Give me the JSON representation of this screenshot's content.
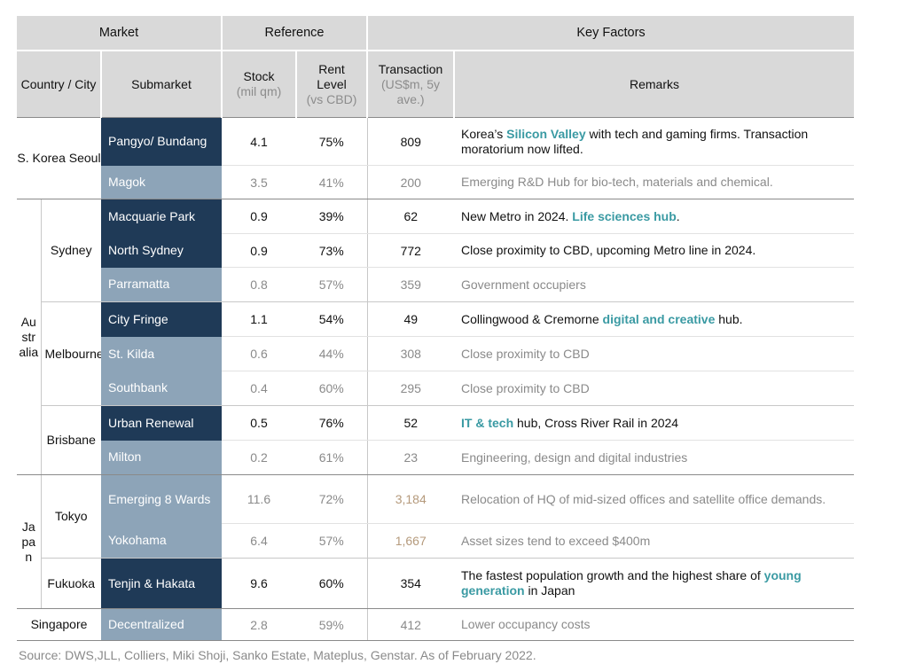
{
  "header": {
    "group_market": "Market",
    "group_reference": "Reference",
    "group_key_factors": "Key Factors",
    "col_country_city": "Country / City",
    "col_submarket": "Submarket",
    "col_stock": "Stock",
    "col_stock_unit": "(mil qm)",
    "col_rent": "Rent Level",
    "col_rent_unit": "(vs CBD)",
    "col_transaction": "Transaction",
    "col_transaction_unit": "(US$m, 5y ave.)",
    "col_remarks": "Remarks"
  },
  "countries": {
    "korea": "S. Korea Seoul",
    "australia": "Australia",
    "japan": "Japan",
    "singapore": "Singapore"
  },
  "cities": {
    "sydney": "Sydney",
    "melbourne": "Melbourne",
    "brisbane": "Brisbane",
    "tokyo": "Tokyo",
    "fukuoka": "Fukuoka"
  },
  "rows": [
    {
      "submarket": "Pangyo/ Bundang",
      "stock": "4.1",
      "rent": "75%",
      "transaction": "809",
      "remark_pre": "Korea’s ",
      "remark_hl": "Silicon Valley",
      "remark_post": " with tech and gaming firms. Transaction moratorium now lifted."
    },
    {
      "submarket": "Magok",
      "stock": "3.5",
      "rent": "41%",
      "transaction": "200",
      "remark_pre": "Emerging R&D Hub for bio-tech, materials and chemical.",
      "remark_hl": "",
      "remark_post": ""
    },
    {
      "submarket": "Macquarie Park",
      "stock": "0.9",
      "rent": "39%",
      "transaction": "62",
      "remark_pre": "New Metro in 2024. ",
      "remark_hl": "Life sciences hub",
      "remark_post": "."
    },
    {
      "submarket": "North Sydney",
      "stock": "0.9",
      "rent": "73%",
      "transaction": "772",
      "remark_pre": "Close proximity to CBD, upcoming Metro line in 2024.",
      "remark_hl": "",
      "remark_post": ""
    },
    {
      "submarket": "Parramatta",
      "stock": "0.8",
      "rent": "57%",
      "transaction": "359",
      "remark_pre": "Government occupiers",
      "remark_hl": "",
      "remark_post": ""
    },
    {
      "submarket": "City Fringe",
      "stock": "1.1",
      "rent": "54%",
      "transaction": "49",
      "remark_pre": "Collingwood & Cremorne ",
      "remark_hl": "digital and creative",
      "remark_post": " hub."
    },
    {
      "submarket": "St. Kilda",
      "stock": "0.6",
      "rent": "44%",
      "transaction": "308",
      "remark_pre": "Close proximity to CBD",
      "remark_hl": "",
      "remark_post": ""
    },
    {
      "submarket": "Southbank",
      "stock": "0.4",
      "rent": "60%",
      "transaction": "295",
      "remark_pre": "Close proximity to CBD",
      "remark_hl": "",
      "remark_post": ""
    },
    {
      "submarket": "Urban Renewal",
      "stock": "0.5",
      "rent": "76%",
      "transaction": "52",
      "remark_pre": "",
      "remark_hl": "IT & tech",
      "remark_post": " hub, Cross River Rail in 2024"
    },
    {
      "submarket": "Milton",
      "stock": "0.2",
      "rent": "61%",
      "transaction": "23",
      "remark_pre": "Engineering, design and digital industries",
      "remark_hl": "",
      "remark_post": ""
    },
    {
      "submarket": "Emerging 8 Wards",
      "stock": "11.6",
      "rent": "72%",
      "transaction": "3,184",
      "remark_pre": "Relocation of HQ of mid-sized offices and satellite office demands.",
      "remark_hl": "",
      "remark_post": ""
    },
    {
      "submarket": "Yokohama",
      "stock": "6.4",
      "rent": "57%",
      "transaction": "1,667",
      "remark_pre": "Asset sizes tend to exceed $400m",
      "remark_hl": "",
      "remark_post": ""
    },
    {
      "submarket": "Tenjin & Hakata",
      "stock": "9.6",
      "rent": "60%",
      "transaction": "354",
      "remark_pre": "The fastest population growth and the highest share of ",
      "remark_hl": "young generation",
      "remark_post": " in Japan"
    },
    {
      "submarket": "Decentralized",
      "stock": "2.8",
      "rent": "59%",
      "transaction": "412",
      "remark_pre": "Lower occupancy costs",
      "remark_hl": "",
      "remark_post": ""
    }
  ],
  "source": "Source: DWS,JLL, Colliers, Miki Shoji, Sanko Estate, Mateplus, Genstar. As of February 2022."
}
